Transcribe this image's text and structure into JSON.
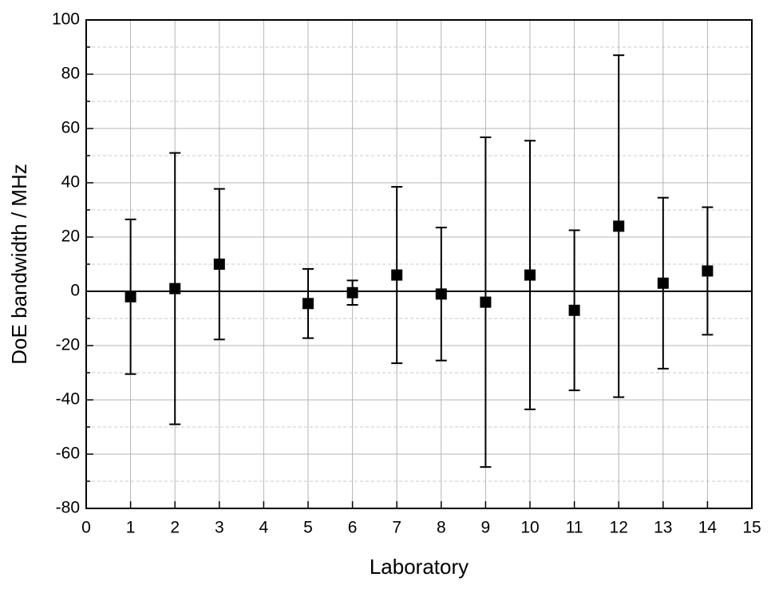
{
  "chart_data": {
    "type": "scatter",
    "x_label": "Laboratory",
    "y_label": "DoE bandwidth / MHz",
    "x": [
      1,
      2,
      3,
      5,
      6,
      7,
      8,
      9,
      10,
      11,
      12,
      13,
      14
    ],
    "values": [
      -2,
      1,
      10,
      -4.5,
      -0.5,
      6,
      -1,
      -4,
      6,
      -7,
      24,
      3,
      7.5
    ],
    "errors": [
      28.5,
      50,
      27.75,
      12.75,
      4.5,
      32.5,
      24.5,
      60.75,
      49.5,
      29.5,
      63,
      31.5,
      23.5
    ],
    "color": "#000000",
    "xlim": [
      0,
      15
    ],
    "xticks": [
      0,
      1,
      2,
      3,
      4,
      5,
      6,
      7,
      8,
      9,
      10,
      11,
      12,
      13,
      14,
      15
    ],
    "ylim": [
      -80,
      100
    ],
    "yticks": [
      -80,
      -60,
      -40,
      -20,
      0,
      20,
      40,
      60,
      80,
      100
    ],
    "yminorticks": [
      -70,
      -50,
      -30,
      -10,
      10,
      30,
      50,
      70,
      90
    ],
    "grid": true,
    "zero_line": true
  }
}
